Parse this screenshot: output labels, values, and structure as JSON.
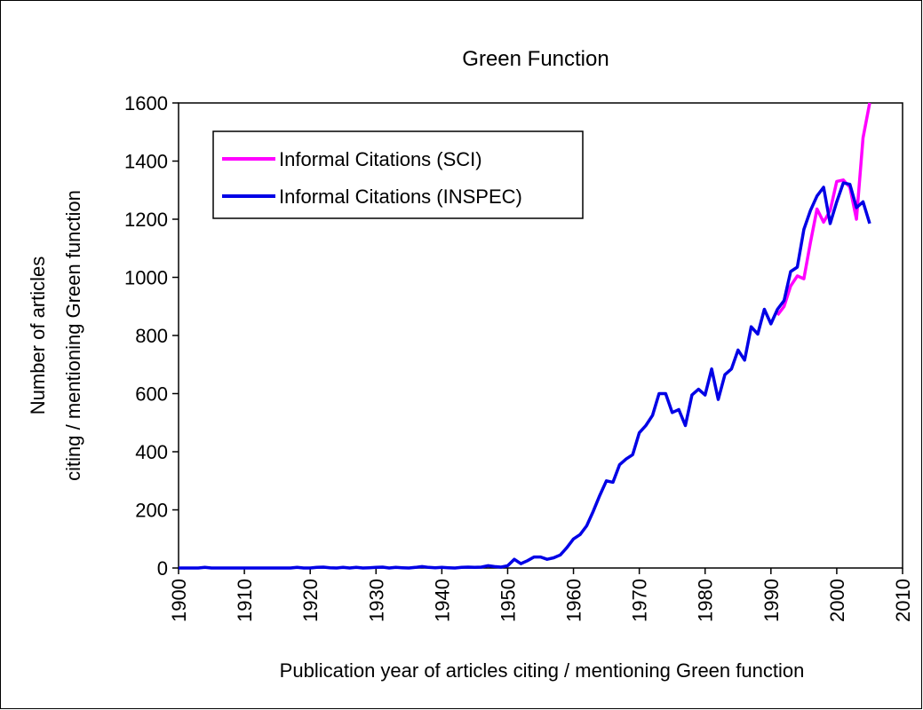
{
  "chart_data": {
    "type": "line",
    "title": "Green Function",
    "ylabel": [
      "Number of articles",
      "citing / mentioning Green function"
    ],
    "xlabel": "Publication year of articles citing / mentioning Green function",
    "xlim": [
      1900,
      2010
    ],
    "xticks": [
      1900,
      1910,
      1920,
      1930,
      1940,
      1950,
      1960,
      1970,
      1980,
      1990,
      2000,
      2010
    ],
    "ylim": [
      0,
      1600
    ],
    "yticks": [
      0,
      200,
      400,
      600,
      800,
      1000,
      1200,
      1400,
      1600
    ],
    "legend": "upper left",
    "x": [
      1900,
      1901,
      1902,
      1903,
      1904,
      1905,
      1906,
      1907,
      1908,
      1909,
      1910,
      1911,
      1912,
      1913,
      1914,
      1915,
      1916,
      1917,
      1918,
      1919,
      1920,
      1921,
      1922,
      1923,
      1924,
      1925,
      1926,
      1927,
      1928,
      1929,
      1930,
      1931,
      1932,
      1933,
      1934,
      1935,
      1936,
      1937,
      1938,
      1939,
      1940,
      1941,
      1942,
      1943,
      1944,
      1945,
      1946,
      1947,
      1948,
      1949,
      1950,
      1951,
      1952,
      1953,
      1954,
      1955,
      1956,
      1957,
      1958,
      1959,
      1960,
      1961,
      1962,
      1963,
      1964,
      1965,
      1966,
      1967,
      1968,
      1969,
      1970,
      1971,
      1972,
      1973,
      1974,
      1975,
      1976,
      1977,
      1978,
      1979,
      1980,
      1981,
      1982,
      1983,
      1984,
      1985,
      1986,
      1987,
      1988,
      1989,
      1990,
      1991,
      1992,
      1993,
      1994,
      1995,
      1996,
      1997,
      1998,
      1999,
      2000,
      2001,
      2002,
      2003,
      2004,
      2005
    ],
    "series": [
      {
        "name": "Informal Citations (SCI)",
        "color": "#ff00ff",
        "values": [
          null,
          null,
          null,
          null,
          null,
          null,
          null,
          null,
          null,
          null,
          null,
          null,
          null,
          null,
          null,
          null,
          null,
          null,
          null,
          null,
          null,
          null,
          null,
          null,
          null,
          null,
          null,
          null,
          null,
          null,
          null,
          null,
          null,
          null,
          null,
          null,
          null,
          null,
          null,
          null,
          null,
          null,
          null,
          null,
          null,
          null,
          null,
          null,
          null,
          null,
          null,
          null,
          null,
          null,
          null,
          null,
          null,
          null,
          null,
          null,
          null,
          null,
          null,
          null,
          null,
          null,
          null,
          null,
          null,
          null,
          null,
          null,
          null,
          null,
          null,
          null,
          null,
          null,
          null,
          null,
          null,
          null,
          null,
          null,
          null,
          null,
          null,
          null,
          null,
          null,
          null,
          870,
          900,
          970,
          1005,
          995,
          1120,
          1235,
          1190,
          1230,
          1330,
          1335,
          1310,
          1200,
          1480,
          1600
        ]
      },
      {
        "name": "Informal Citations (INSPEC)",
        "color": "#0000e6",
        "values": [
          0,
          0,
          0,
          0,
          2,
          0,
          0,
          0,
          0,
          0,
          0,
          0,
          0,
          0,
          0,
          0,
          0,
          0,
          2,
          0,
          0,
          2,
          3,
          1,
          0,
          2,
          0,
          2,
          0,
          1,
          2,
          3,
          0,
          2,
          1,
          0,
          2,
          5,
          2,
          1,
          2,
          1,
          0,
          2,
          3,
          2,
          3,
          8,
          5,
          3,
          8,
          30,
          15,
          25,
          38,
          38,
          30,
          35,
          45,
          70,
          100,
          115,
          145,
          195,
          250,
          300,
          295,
          355,
          375,
          390,
          465,
          490,
          525,
          600,
          600,
          535,
          545,
          490,
          595,
          615,
          595,
          685,
          580,
          665,
          685,
          750,
          715,
          830,
          805,
          890,
          840,
          890,
          920,
          1020,
          1035,
          1165,
          1230,
          1280,
          1310,
          1185,
          1260,
          1325,
          1320,
          1240,
          1260,
          1185
        ]
      }
    ]
  }
}
